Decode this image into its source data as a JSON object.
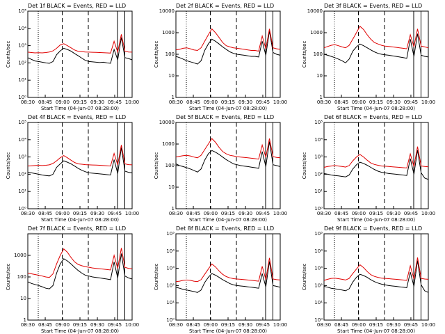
{
  "ylabel": "Counts/sec",
  "xlabel": "Start Time (04-Jun-07 08:28:00)",
  "x_tick_labels": [
    "08:30",
    "08:45",
    "09:00",
    "09:15",
    "09:30",
    "09:45",
    "10:00"
  ],
  "colors": {
    "events": "#000000",
    "lld": "#e00000"
  },
  "chart_data": [
    {
      "type": "line",
      "title": "Det 1f BLACK = Events, RED = LLD",
      "ylabel": "Counts/sec",
      "xlabel": "Start Time (04-Jun-07 08:28:00)",
      "y_log": true,
      "y_ticks": [
        "1",
        "10",
        "100",
        "1000",
        "10000",
        "100000"
      ],
      "y_ticks_format": "exp",
      "ylim": [
        1,
        100000
      ],
      "series": [
        {
          "name": "Events",
          "color": "#000000",
          "y": [
            200,
            160,
            130,
            120,
            110,
            100,
            95,
            120,
            300,
            500,
            700,
            600,
            480,
            350,
            260,
            190,
            140,
            120,
            115,
            110,
            105,
            110,
            100,
            95,
            600,
            150,
            3000,
            200,
            180,
            150
          ]
        },
        {
          "name": "LLD",
          "color": "#e00000",
          "y": [
            420,
            400,
            380,
            390,
            380,
            400,
            430,
            500,
            700,
            1100,
            1300,
            1000,
            750,
            560,
            470,
            450,
            430,
            420,
            415,
            410,
            400,
            390,
            380,
            370,
            1800,
            420,
            4500,
            480,
            430,
            420
          ]
        }
      ]
    },
    {
      "type": "line",
      "title": "Det 2f BLACK = Events, RED = LLD",
      "ylabel": "Counts/sec",
      "xlabel": "Start Time (04-Jun-07 08:28:00)",
      "y_log": true,
      "y_ticks": [
        "1",
        "10",
        "100",
        "1000",
        "10000"
      ],
      "y_ticks_format": "plain",
      "ylim": [
        1,
        10000
      ],
      "series": [
        {
          "name": "Events",
          "color": "#000000",
          "y": [
            80,
            70,
            60,
            50,
            45,
            40,
            35,
            50,
            150,
            300,
            500,
            400,
            300,
            220,
            170,
            130,
            110,
            100,
            95,
            90,
            85,
            80,
            80,
            75,
            400,
            90,
            1200,
            120,
            100,
            90
          ]
        },
        {
          "name": "LLD",
          "color": "#e00000",
          "y": [
            160,
            170,
            190,
            200,
            180,
            160,
            150,
            200,
            400,
            800,
            1500,
            1000,
            600,
            350,
            250,
            220,
            200,
            190,
            180,
            170,
            160,
            150,
            150,
            140,
            700,
            180,
            1500,
            200,
            180,
            170
          ]
        }
      ]
    },
    {
      "type": "line",
      "title": "Det 3f BLACK = Events, RED = LLD",
      "ylabel": "Counts/sec",
      "xlabel": "Start Time (04-Jun-07 08:28:00)",
      "y_log": true,
      "y_ticks": [
        "1",
        "10",
        "100",
        "1000",
        "10000"
      ],
      "y_ticks_format": "plain",
      "ylim": [
        1,
        10000
      ],
      "series": [
        {
          "name": "Events",
          "color": "#000000",
          "y": [
            100,
            90,
            80,
            70,
            60,
            50,
            40,
            60,
            140,
            220,
            300,
            250,
            200,
            160,
            130,
            110,
            100,
            95,
            90,
            85,
            80,
            75,
            70,
            65,
            500,
            80,
            900,
            90,
            80,
            75
          ]
        },
        {
          "name": "LLD",
          "color": "#e00000",
          "y": [
            200,
            230,
            260,
            280,
            250,
            220,
            200,
            260,
            500,
            1000,
            2000,
            1400,
            800,
            500,
            350,
            300,
            260,
            240,
            230,
            220,
            210,
            200,
            190,
            180,
            800,
            220,
            1500,
            240,
            220,
            200
          ]
        }
      ]
    },
    {
      "type": "line",
      "title": "Det 4f BLACK = Events, RED = LLD",
      "ylabel": "Counts/sec",
      "xlabel": "Start Time (04-Jun-07 08:28:00)",
      "y_log": true,
      "y_ticks": [
        "1",
        "10",
        "100",
        "1000",
        "10000",
        "100000"
      ],
      "y_ticks_format": "exp",
      "ylim": [
        1,
        100000
      ],
      "series": [
        {
          "name": "Events",
          "color": "#000000",
          "y": [
            130,
            120,
            110,
            100,
            90,
            85,
            80,
            100,
            250,
            400,
            600,
            500,
            400,
            300,
            220,
            170,
            140,
            120,
            115,
            110,
            105,
            100,
            95,
            90,
            700,
            110,
            3500,
            150,
            130,
            120
          ]
        },
        {
          "name": "LLD",
          "color": "#e00000",
          "y": [
            300,
            310,
            320,
            330,
            320,
            330,
            350,
            420,
            600,
            900,
            1200,
            900,
            650,
            480,
            400,
            380,
            360,
            350,
            345,
            340,
            330,
            320,
            310,
            300,
            1600,
            350,
            5000,
            400,
            360,
            350
          ]
        }
      ]
    },
    {
      "type": "line",
      "title": "Det 5f BLACK = Events, RED = LLD",
      "ylabel": "Counts/sec",
      "xlabel": "Start Time (04-Jun-07 08:28:00)",
      "y_log": true,
      "y_ticks": [
        "1",
        "10",
        "100",
        "1000",
        "10000"
      ],
      "y_ticks_format": "plain",
      "ylim": [
        1,
        10000
      ],
      "series": [
        {
          "name": "Events",
          "color": "#000000",
          "y": [
            120,
            100,
            90,
            80,
            70,
            60,
            50,
            70,
            180,
            350,
            500,
            420,
            330,
            250,
            190,
            150,
            120,
            110,
            100,
            95,
            90,
            85,
            80,
            75,
            450,
            90,
            1300,
            110,
            100,
            90
          ]
        },
        {
          "name": "LLD",
          "color": "#e00000",
          "y": [
            250,
            270,
            290,
            300,
            280,
            250,
            230,
            300,
            550,
            1000,
            1800,
            1200,
            700,
            450,
            350,
            300,
            280,
            260,
            250,
            240,
            230,
            220,
            210,
            200,
            900,
            240,
            1800,
            260,
            240,
            230
          ]
        }
      ]
    },
    {
      "type": "line",
      "title": "Det 6f BLACK = Events, RED = LLD",
      "ylabel": "Counts/sec",
      "xlabel": "Start Time (04-Jun-07 08:28:00)",
      "y_log": true,
      "y_ticks": [
        "1",
        "10",
        "100",
        "1000",
        "10000",
        "100000"
      ],
      "y_ticks_format": "exp",
      "ylim": [
        1,
        100000
      ],
      "series": [
        {
          "name": "Events",
          "color": "#000000",
          "y": [
            110,
            100,
            90,
            85,
            80,
            75,
            70,
            90,
            200,
            350,
            500,
            420,
            330,
            250,
            190,
            150,
            130,
            120,
            110,
            105,
            100,
            95,
            90,
            85,
            800,
            100,
            2500,
            120,
            60,
            50
          ]
        },
        {
          "name": "LLD",
          "color": "#e00000",
          "y": [
            250,
            280,
            300,
            320,
            300,
            280,
            260,
            320,
            600,
            1000,
            1400,
            1000,
            650,
            450,
            370,
            330,
            300,
            290,
            280,
            270,
            260,
            250,
            240,
            230,
            1500,
            280,
            4000,
            300,
            280,
            270
          ]
        }
      ]
    },
    {
      "type": "line",
      "title": "Det 7f BLACK = Events, RED = LLD",
      "ylabel": "Counts/sec",
      "xlabel": "Start Time (04-Jun-07 08:28:00)",
      "y_log": true,
      "y_ticks": [
        "1",
        "10",
        "100",
        "1000"
      ],
      "y_ticks_format": "plain",
      "ylim": [
        1,
        10000
      ],
      "series": [
        {
          "name": "Events",
          "color": "#000000",
          "y": [
            60,
            50,
            45,
            40,
            35,
            30,
            28,
            40,
            150,
            400,
            700,
            550,
            400,
            280,
            200,
            150,
            120,
            110,
            100,
            95,
            90,
            85,
            80,
            75,
            500,
            90,
            1200,
            110,
            90,
            80
          ]
        },
        {
          "name": "LLD",
          "color": "#e00000",
          "y": [
            150,
            140,
            130,
            120,
            110,
            100,
            95,
            140,
            400,
            1000,
            2000,
            1400,
            800,
            500,
            380,
            330,
            300,
            280,
            260,
            250,
            240,
            230,
            220,
            210,
            1000,
            250,
            2200,
            280,
            250,
            240
          ]
        }
      ]
    },
    {
      "type": "line",
      "title": "Det 8f BLACK = Events, RED = LLD",
      "ylabel": "Counts/sec",
      "xlabel": "Start Time (04-Jun-07 08:28:00)",
      "y_log": true,
      "y_ticks": [
        "1",
        "10",
        "100",
        "1000",
        "10000",
        "100000"
      ],
      "y_ticks_format": "exp",
      "ylim": [
        1,
        100000
      ],
      "series": [
        {
          "name": "Events",
          "color": "#000000",
          "y": [
            80,
            70,
            60,
            55,
            50,
            45,
            40,
            55,
            150,
            300,
            500,
            400,
            300,
            220,
            170,
            130,
            110,
            100,
            95,
            90,
            85,
            80,
            75,
            70,
            500,
            85,
            2500,
            100,
            90,
            80
          ]
        },
        {
          "name": "LLD",
          "color": "#e00000",
          "y": [
            170,
            180,
            200,
            210,
            200,
            180,
            170,
            220,
            450,
            900,
            1800,
            1200,
            700,
            450,
            330,
            280,
            250,
            240,
            230,
            220,
            210,
            200,
            190,
            180,
            1300,
            220,
            4000,
            240,
            220,
            210
          ]
        }
      ]
    },
    {
      "type": "line",
      "title": "Det 9f BLACK = Events, RED = LLD",
      "ylabel": "Counts/sec",
      "xlabel": "Start Time (04-Jun-07 08:28:00)",
      "y_log": true,
      "y_ticks": [
        "1",
        "10",
        "100",
        "1000",
        "10000",
        "100000"
      ],
      "y_ticks_format": "exp",
      "ylim": [
        1,
        100000
      ],
      "series": [
        {
          "name": "Events",
          "color": "#000000",
          "y": [
            90,
            80,
            70,
            65,
            60,
            55,
            50,
            65,
            160,
            300,
            450,
            380,
            300,
            220,
            170,
            140,
            120,
            110,
            100,
            95,
            90,
            85,
            80,
            75,
            600,
            90,
            2800,
            110,
            50,
            40
          ]
        },
        {
          "name": "LLD",
          "color": "#e00000",
          "y": [
            200,
            230,
            260,
            270,
            250,
            230,
            210,
            260,
            500,
            900,
            1600,
            1100,
            650,
            430,
            340,
            300,
            270,
            260,
            250,
            240,
            230,
            220,
            210,
            200,
            1400,
            240,
            4200,
            260,
            240,
            230
          ]
        }
      ]
    }
  ]
}
